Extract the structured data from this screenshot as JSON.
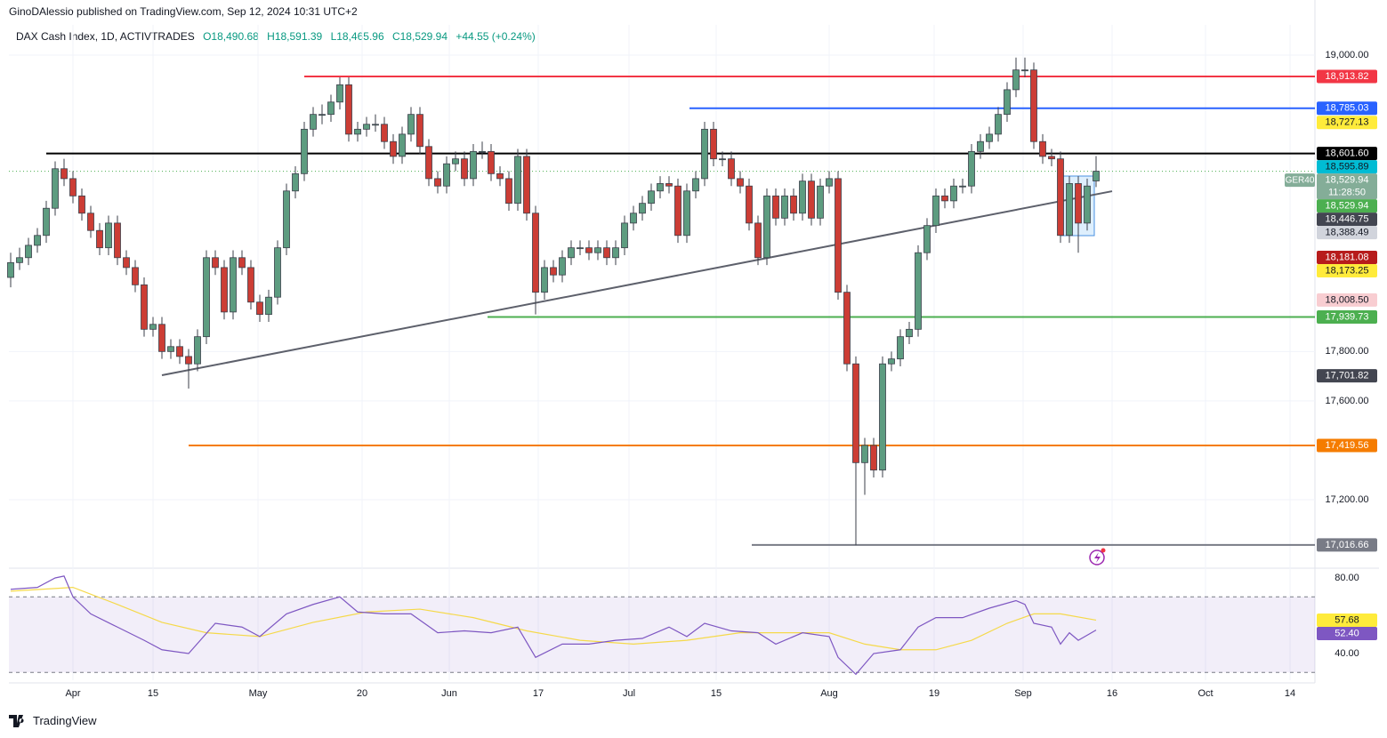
{
  "header": {
    "publisher": "GinoDAlessio published on TradingView.com, Sep 12, 2024 10:31 UTC+2",
    "footer": "TradingView"
  },
  "chart_data": {
    "type": "candlestick",
    "title": "DAX Cash Index, 1D, ACTIVTRADES",
    "ohlc_labels": [
      "O18,490.68",
      "H18,591.39",
      "L18,465.96",
      "C18,529.94",
      "+44.55 (+0.24%)"
    ],
    "up_color": "#5d9c80",
    "down_color": "#cc3d35",
    "xlim": [
      -0.2,
      146.6
    ],
    "xticks": [
      {
        "value": 7,
        "label": "Apr"
      },
      {
        "value": 16,
        "label": "15"
      },
      {
        "value": 27.8,
        "label": "May"
      },
      {
        "value": 39.5,
        "label": "20"
      },
      {
        "value": 49.3,
        "label": "Jun"
      },
      {
        "value": 59.3,
        "label": "17"
      },
      {
        "value": 69.5,
        "label": "Jul"
      },
      {
        "value": 79.3,
        "label": "15"
      },
      {
        "value": 92,
        "label": "Aug"
      },
      {
        "value": 103.8,
        "label": "19"
      },
      {
        "value": 113.8,
        "label": "Sep"
      },
      {
        "value": 123.8,
        "label": "16"
      },
      {
        "value": 134.3,
        "label": "Oct"
      },
      {
        "value": 143.8,
        "label": "14"
      }
    ],
    "ylim": [
      16926.4,
      19122.4
    ],
    "yticks": [
      {
        "value": 19000,
        "label": "19,000.00"
      },
      {
        "value": 17800,
        "label": "17,800.00"
      },
      {
        "value": 17600,
        "label": "17,600.00"
      },
      {
        "value": 17200,
        "label": "17,200.00"
      }
    ],
    "ohlc": [
      [
        18100,
        18200,
        18060,
        18160
      ],
      [
        18160,
        18220,
        18130,
        18180
      ],
      [
        18180,
        18260,
        18150,
        18230
      ],
      [
        18230,
        18300,
        18200,
        18270
      ],
      [
        18270,
        18410,
        18240,
        18380
      ],
      [
        18380,
        18570,
        18350,
        18540
      ],
      [
        18540,
        18580,
        18470,
        18500
      ],
      [
        18500,
        18530,
        18400,
        18430
      ],
      [
        18430,
        18460,
        18330,
        18360
      ],
      [
        18360,
        18390,
        18260,
        18290
      ],
      [
        18290,
        18320,
        18190,
        18220
      ],
      [
        18220,
        18350,
        18190,
        18320
      ],
      [
        18320,
        18350,
        18150,
        18180
      ],
      [
        18180,
        18210,
        18110,
        18140
      ],
      [
        18140,
        18170,
        18040,
        18070
      ],
      [
        18070,
        18100,
        17860,
        17890
      ],
      [
        17890,
        17940,
        17860,
        17910
      ],
      [
        17910,
        17940,
        17770,
        17800
      ],
      [
        17800,
        17850,
        17770,
        17820
      ],
      [
        17820,
        17850,
        17750,
        17780
      ],
      [
        17780,
        17810,
        17650,
        17750
      ],
      [
        17750,
        17890,
        17720,
        17860
      ],
      [
        17860,
        18210,
        17830,
        18180
      ],
      [
        18180,
        18210,
        18110,
        18140
      ],
      [
        18140,
        18170,
        17930,
        17960
      ],
      [
        17960,
        18210,
        17930,
        18180
      ],
      [
        18180,
        18210,
        18110,
        18140
      ],
      [
        18140,
        18170,
        17970,
        18000
      ],
      [
        18000,
        18030,
        17920,
        17950
      ],
      [
        17950,
        18050,
        17920,
        18020
      ],
      [
        18020,
        18250,
        17990,
        18220
      ],
      [
        18220,
        18480,
        18190,
        18450
      ],
      [
        18450,
        18550,
        18420,
        18520
      ],
      [
        18520,
        18730,
        18490,
        18700
      ],
      [
        18700,
        18790,
        18670,
        18760
      ],
      [
        18760,
        18800,
        18720,
        18760
      ],
      [
        18760,
        18840,
        18730,
        18810
      ],
      [
        18810,
        18910,
        18780,
        18880
      ],
      [
        18880,
        18910,
        18650,
        18680
      ],
      [
        18680,
        18730,
        18650,
        18700
      ],
      [
        18700,
        18750,
        18670,
        18720
      ],
      [
        18720,
        18760,
        18690,
        18720
      ],
      [
        18720,
        18750,
        18620,
        18650
      ],
      [
        18650,
        18680,
        18560,
        18590
      ],
      [
        18590,
        18710,
        18560,
        18680
      ],
      [
        18680,
        18790,
        18650,
        18760
      ],
      [
        18760,
        18790,
        18600,
        18630
      ],
      [
        18630,
        18660,
        18470,
        18500
      ],
      [
        18500,
        18530,
        18440,
        18470
      ],
      [
        18470,
        18590,
        18440,
        18560
      ],
      [
        18560,
        18610,
        18530,
        18580
      ],
      [
        18580,
        18610,
        18470,
        18500
      ],
      [
        18500,
        18640,
        18470,
        18610
      ],
      [
        18610,
        18650,
        18580,
        18610
      ],
      [
        18610,
        18640,
        18490,
        18520
      ],
      [
        18520,
        18550,
        18470,
        18500
      ],
      [
        18500,
        18530,
        18370,
        18400
      ],
      [
        18400,
        18620,
        18370,
        18590
      ],
      [
        18590,
        18620,
        18330,
        18360
      ],
      [
        18360,
        18390,
        17950,
        18040
      ],
      [
        18040,
        18170,
        18010,
        18140
      ],
      [
        18140,
        18170,
        18080,
        18110
      ],
      [
        18110,
        18210,
        18080,
        18180
      ],
      [
        18180,
        18250,
        18150,
        18220
      ],
      [
        18220,
        18250,
        18190,
        18220
      ],
      [
        18220,
        18250,
        18170,
        18200
      ],
      [
        18200,
        18250,
        18170,
        18220
      ],
      [
        18220,
        18250,
        18150,
        18180
      ],
      [
        18180,
        18250,
        18150,
        18220
      ],
      [
        18220,
        18350,
        18190,
        18320
      ],
      [
        18320,
        18390,
        18290,
        18360
      ],
      [
        18360,
        18430,
        18330,
        18400
      ],
      [
        18400,
        18480,
        18370,
        18450
      ],
      [
        18450,
        18510,
        18420,
        18480
      ],
      [
        18480,
        18510,
        18440,
        18470
      ],
      [
        18470,
        18500,
        18240,
        18270
      ],
      [
        18270,
        18480,
        18240,
        18450
      ],
      [
        18450,
        18530,
        18420,
        18500
      ],
      [
        18500,
        18730,
        18470,
        18700
      ],
      [
        18700,
        18730,
        18550,
        18580
      ],
      [
        18580,
        18610,
        18550,
        18580
      ],
      [
        18580,
        18610,
        18470,
        18500
      ],
      [
        18500,
        18530,
        18440,
        18470
      ],
      [
        18470,
        18500,
        18290,
        18320
      ],
      [
        18320,
        18350,
        18150,
        18180
      ],
      [
        18180,
        18460,
        18150,
        18430
      ],
      [
        18430,
        18460,
        18310,
        18340
      ],
      [
        18340,
        18460,
        18310,
        18430
      ],
      [
        18430,
        18460,
        18330,
        18360
      ],
      [
        18360,
        18520,
        18330,
        18490
      ],
      [
        18490,
        18520,
        18310,
        18340
      ],
      [
        18340,
        18500,
        18310,
        18470
      ],
      [
        18470,
        18530,
        18440,
        18500
      ],
      [
        18500,
        18530,
        18010,
        18040
      ],
      [
        18040,
        18070,
        17720,
        17750
      ],
      [
        17750,
        17780,
        17016,
        17350
      ],
      [
        17350,
        17450,
        17220,
        17420
      ],
      [
        17420,
        17450,
        17290,
        17320
      ],
      [
        17320,
        17780,
        17290,
        17750
      ],
      [
        17750,
        17800,
        17720,
        17770
      ],
      [
        17770,
        17890,
        17740,
        17860
      ],
      [
        17860,
        17920,
        17830,
        17890
      ],
      [
        17890,
        18230,
        17860,
        18200
      ],
      [
        18200,
        18340,
        18170,
        18310
      ],
      [
        18310,
        18460,
        18280,
        18430
      ],
      [
        18430,
        18460,
        18380,
        18410
      ],
      [
        18410,
        18500,
        18380,
        18470
      ],
      [
        18470,
        18500,
        18440,
        18470
      ],
      [
        18470,
        18640,
        18440,
        18610
      ],
      [
        18610,
        18680,
        18580,
        18650
      ],
      [
        18650,
        18710,
        18620,
        18680
      ],
      [
        18680,
        18790,
        18650,
        18760
      ],
      [
        18760,
        18890,
        18730,
        18860
      ],
      [
        18860,
        18990,
        18830,
        18940
      ],
      [
        18940,
        18990,
        18910,
        18940
      ],
      [
        18940,
        18970,
        18620,
        18650
      ],
      [
        18650,
        18680,
        18560,
        18590
      ],
      [
        18590,
        18620,
        18550,
        18580
      ],
      [
        18580,
        18610,
        18240,
        18270
      ],
      [
        18270,
        18510,
        18240,
        18480
      ],
      [
        18480,
        18510,
        18200,
        18320
      ],
      [
        18320,
        18500,
        18290,
        18470
      ],
      [
        18490.68,
        18591.39,
        18465.96,
        18529.94
      ]
    ],
    "levels": [
      {
        "value": 18913.82,
        "label": "18,913.82",
        "color": "#f23645",
        "text_color": "#ffffff",
        "start": 33
      },
      {
        "value": 18785.03,
        "label": "18,785.03",
        "color": "#2962ff",
        "text_color": "#ffffff",
        "start": 76.3
      },
      {
        "value": 18601.6,
        "label": "18,601.60",
        "color": "#000000",
        "text_color": "#ffffff",
        "start": 4
      },
      {
        "value": 17939.73,
        "label": "17,939.73",
        "color": "#4caf50",
        "text_color": "#ffffff",
        "start": 53.6
      },
      {
        "value": 17419.56,
        "label": "17,419.56",
        "color": "#f57c00",
        "text_color": "#ffffff",
        "start": 20
      },
      {
        "value": 17016.66,
        "label": "17,016.66",
        "color": "#787b86",
        "text_color": "#ffffff",
        "start": 83.3
      }
    ],
    "price_tags": [
      {
        "value": 18727.13,
        "label": "18,727.13",
        "color": "#ffeb3b",
        "text_color": "#131722"
      },
      {
        "value": 18595.89,
        "label": "18,595.89",
        "color": "#00bcd4",
        "text_color": "#131722"
      },
      {
        "value": 18529.94,
        "label": "18,529.94",
        "color": "#84ad98",
        "text_color": "#ffffff",
        "symbol": "GER40",
        "countdown": "11:28:50"
      },
      {
        "value": 18529.94,
        "label": "18,529.94",
        "color": "#4caf50",
        "text_color": "#ffffff"
      },
      {
        "value": 18446.75,
        "label": "18,446.75",
        "color": "#434651",
        "text_color": "#ffffff"
      },
      {
        "value": 18388.49,
        "label": "18,388.49",
        "color": "#d1d4dc",
        "text_color": "#131722"
      },
      {
        "value": 18181.08,
        "label": "18,181.08",
        "color": "#b71c1c",
        "text_color": "#ffffff"
      },
      {
        "value": 18173.25,
        "label": "18,173.25",
        "color": "#ffeb3b",
        "text_color": "#131722"
      },
      {
        "value": 18008.5,
        "label": "18,008.50",
        "color": "#f8cdd1",
        "text_color": "#131722"
      },
      {
        "value": 17701.82,
        "label": "17,701.82",
        "color": "#434651",
        "text_color": "#ffffff"
      }
    ],
    "trend_line": {
      "x": [
        17,
        123.8
      ],
      "values": [
        17704,
        18449
      ],
      "color": "#5d606b"
    },
    "rsi": {
      "lim": [
        25.9,
        84.7
      ],
      "ticks": [
        {
          "value": 80,
          "label": "80.00"
        },
        {
          "value": 40,
          "label": "40.00"
        }
      ],
      "bands": [
        70,
        30
      ],
      "color": "#7e57c2",
      "x": [
        0,
        3,
        5,
        6,
        7,
        9,
        12,
        15,
        17,
        20,
        23,
        26,
        28,
        31,
        34,
        37,
        39,
        42,
        45,
        48,
        51,
        54,
        57,
        59,
        62,
        65,
        68,
        71,
        74,
        76,
        78,
        81,
        84,
        86,
        89,
        92,
        93,
        95,
        97,
        100,
        102,
        104,
        107,
        110,
        113,
        114,
        115,
        117,
        118,
        119,
        120,
        122
      ],
      "values": [
        74,
        75,
        80,
        81,
        70,
        61,
        54,
        47,
        42,
        40,
        56,
        54,
        49,
        61,
        66,
        70,
        62,
        61,
        61,
        51,
        52,
        51,
        54,
        38,
        45,
        45,
        47,
        48,
        54,
        49,
        56,
        52,
        51,
        45,
        51,
        49,
        38,
        29,
        40,
        42,
        54,
        59,
        59,
        64,
        68,
        66,
        56,
        54,
        45,
        51,
        47,
        52.4
      ],
      "ma_color": "#f5d94a",
      "ma_x": [
        0,
        7,
        12,
        17,
        22,
        28,
        34,
        40,
        46,
        52,
        58,
        64,
        70,
        76,
        82,
        88,
        92,
        96,
        100,
        104,
        108,
        112,
        115,
        118,
        122
      ],
      "ma_values": [
        73,
        75,
        66,
        56.5,
        51,
        49,
        56.5,
        62,
        63.5,
        59,
        52,
        47,
        45,
        47,
        51,
        51,
        51,
        45,
        42,
        42,
        47,
        56,
        61,
        61,
        57.68
      ],
      "tags": [
        {
          "value": 57.68,
          "label": "57.68",
          "color": "#ffeb3b",
          "text_color": "#131722"
        },
        {
          "value": 52.4,
          "label": "52.40",
          "color": "#7e57c2",
          "text_color": "#ffffff"
        }
      ]
    }
  }
}
